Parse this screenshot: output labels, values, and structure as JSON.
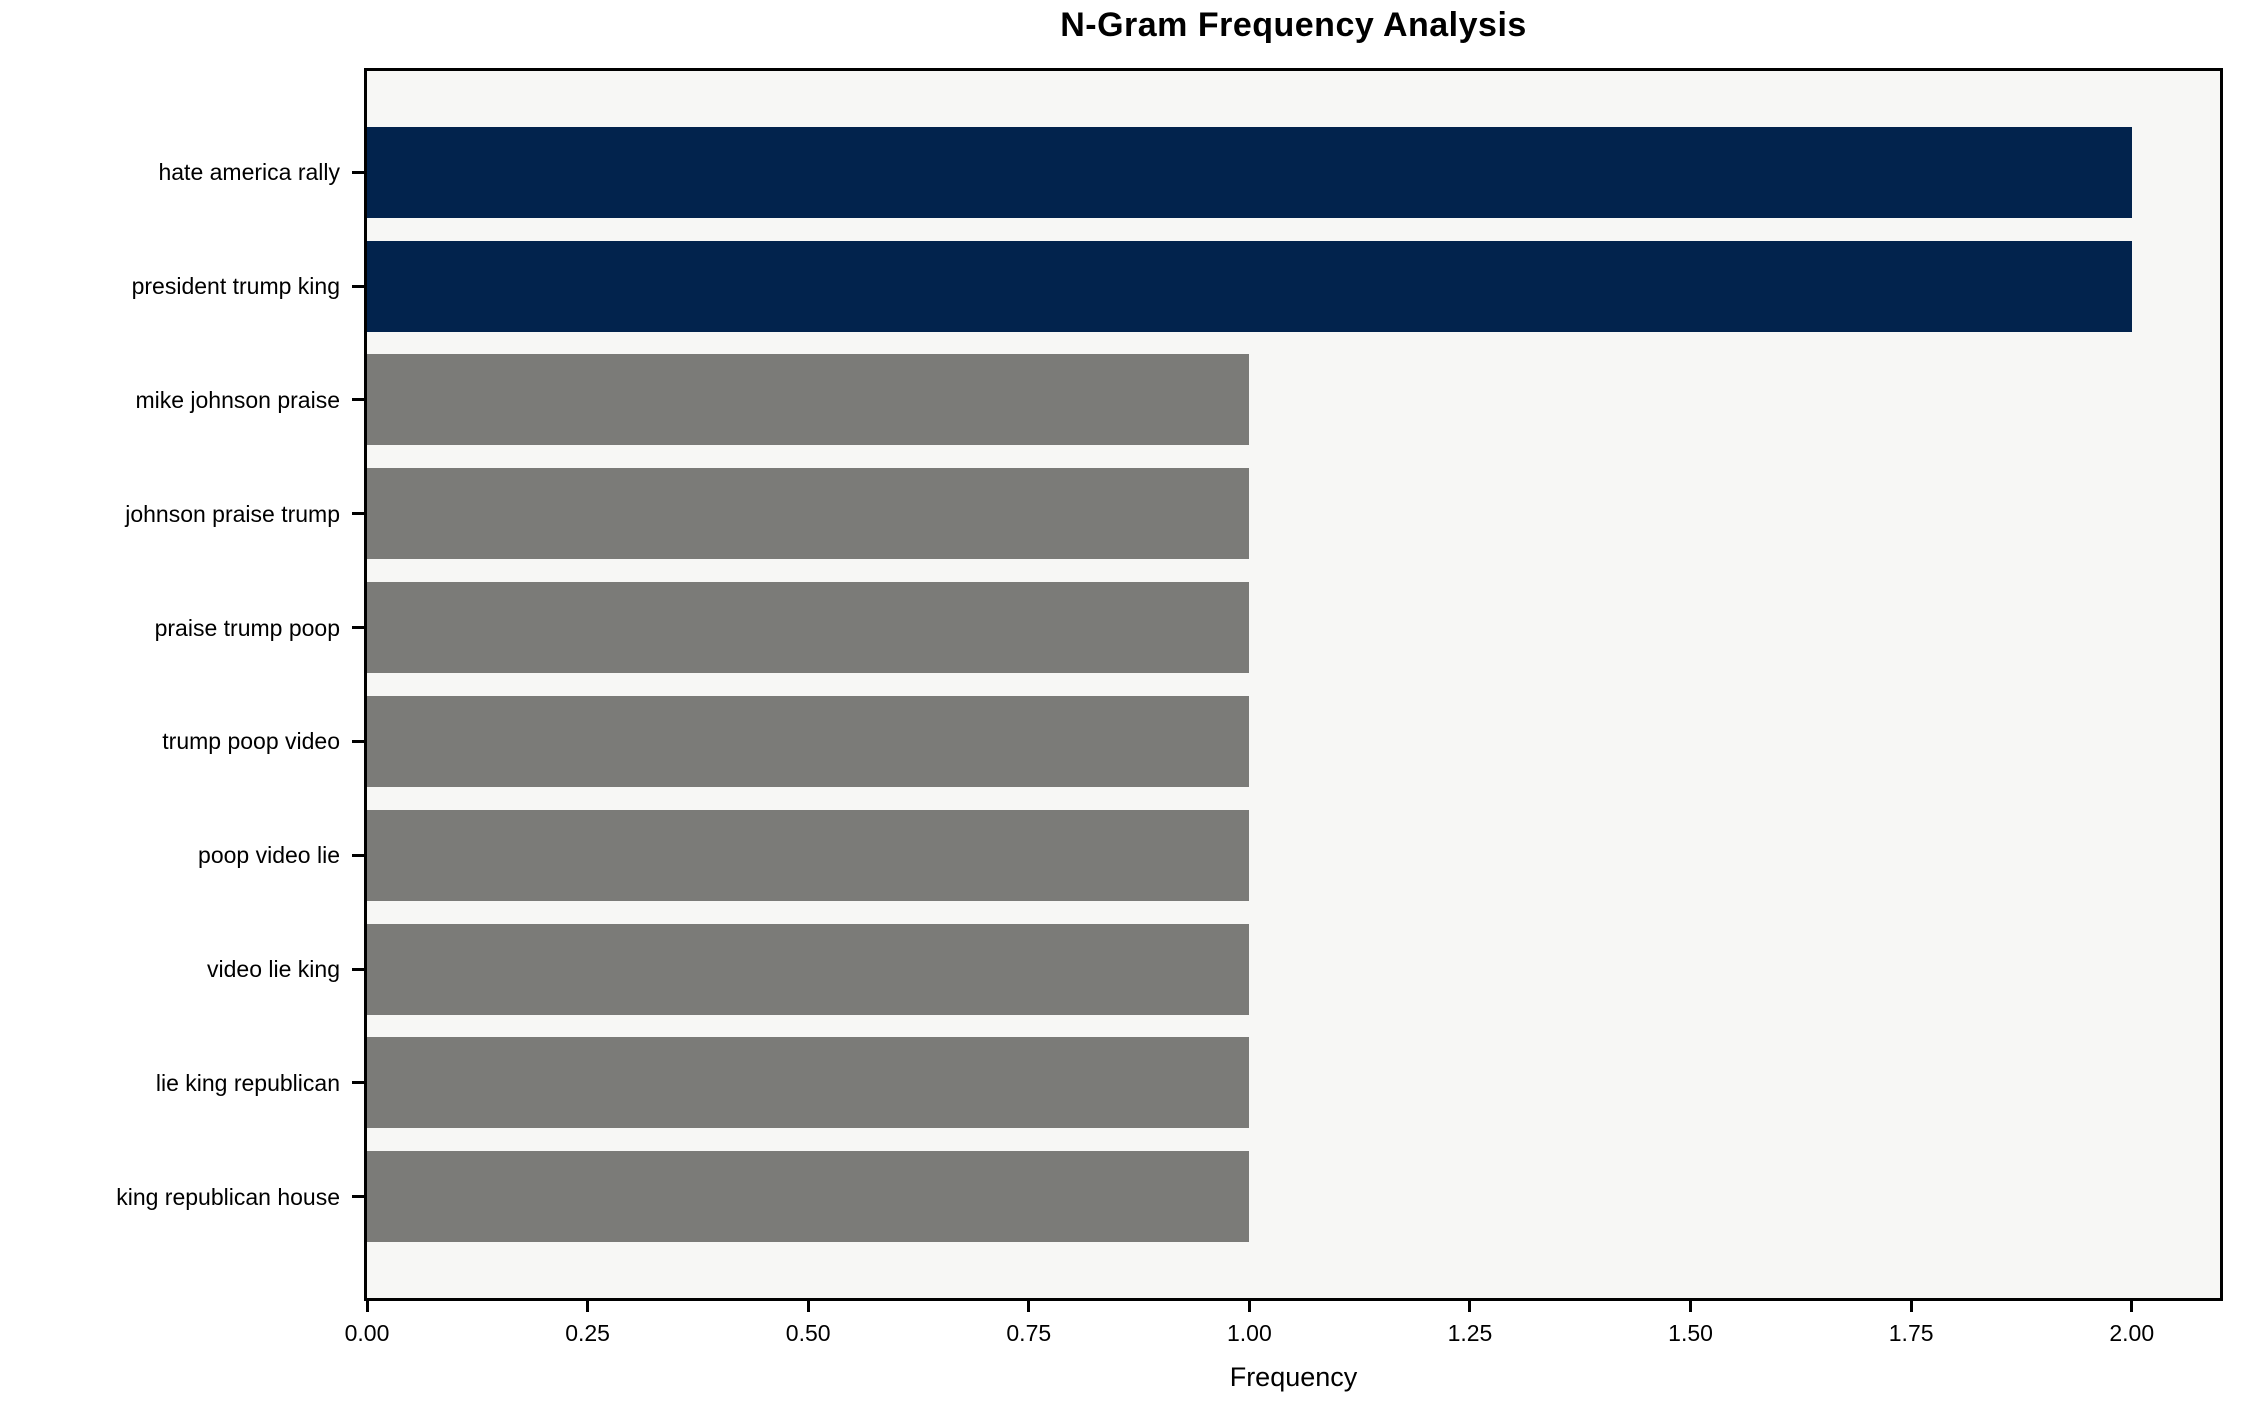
{
  "chart_data": {
    "type": "bar",
    "orientation": "horizontal",
    "title": "N-Gram Frequency Analysis",
    "xlabel": "Frequency",
    "ylabel": "",
    "categories": [
      "hate america rally",
      "president trump king",
      "mike johnson praise",
      "johnson praise trump",
      "praise trump poop",
      "trump poop video",
      "poop video lie",
      "video lie king",
      "lie king republican",
      "king republican house"
    ],
    "values": [
      2,
      2,
      1,
      1,
      1,
      1,
      1,
      1,
      1,
      1
    ],
    "bar_colors": [
      "#02234d",
      "#02234d",
      "#7b7b78",
      "#7b7b78",
      "#7b7b78",
      "#7b7b78",
      "#7b7b78",
      "#7b7b78",
      "#7b7b78",
      "#7b7b78"
    ],
    "xlim": [
      0,
      2.1
    ],
    "xticks": [
      {
        "value": 0.0,
        "label": "0.00"
      },
      {
        "value": 0.25,
        "label": "0.25"
      },
      {
        "value": 0.5,
        "label": "0.50"
      },
      {
        "value": 0.75,
        "label": "0.75"
      },
      {
        "value": 1.0,
        "label": "1.00"
      },
      {
        "value": 1.25,
        "label": "1.25"
      },
      {
        "value": 1.5,
        "label": "1.50"
      },
      {
        "value": 1.75,
        "label": "1.75"
      },
      {
        "value": 2.0,
        "label": "2.00"
      }
    ],
    "grid": false,
    "legend": null,
    "colors": {
      "highlight_bar": "#02234d",
      "default_bar": "#7b7b78",
      "plot_background": "#f7f7f5",
      "figure_background": "#ffffff",
      "spine": "#000000",
      "text": "#000000"
    }
  }
}
